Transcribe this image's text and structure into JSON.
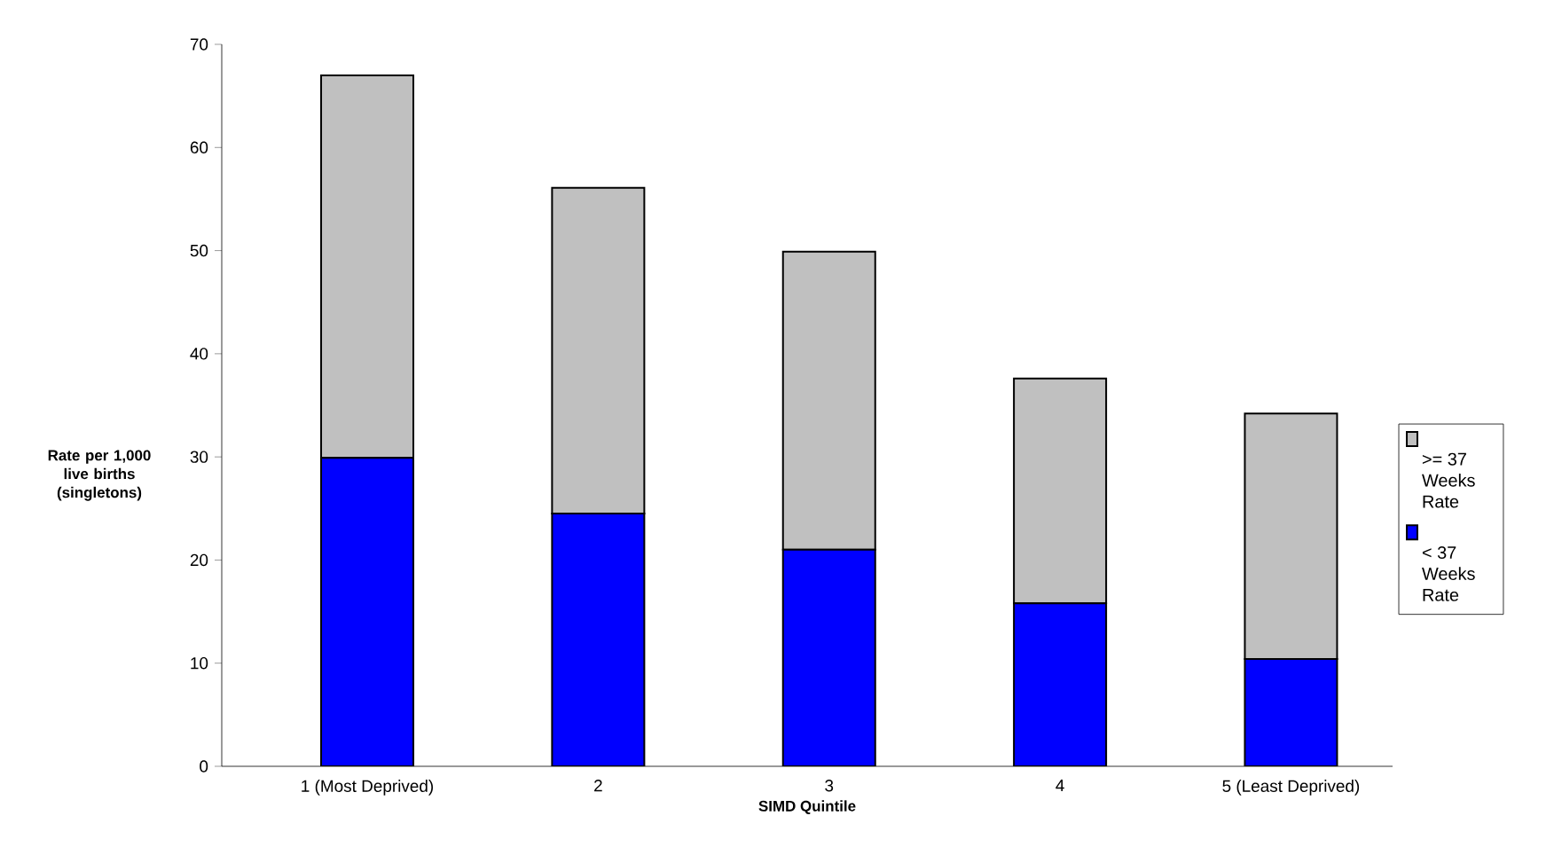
{
  "chart_data": {
    "type": "bar",
    "stacked": true,
    "xlabel": "SIMD Quintile",
    "ylabel": "Rate per 1,000 live births (singletons)",
    "categories": [
      "1 (Most Deprived)",
      "2",
      "3",
      "4",
      "5 (Least Deprived)"
    ],
    "series": [
      {
        "name": "< 37 Weeks Rate",
        "color": "#0000ff",
        "values": [
          29.9,
          24.5,
          21.0,
          15.8,
          10.4
        ]
      },
      {
        "name": ">= 37 Weeks Rate",
        "color": "#c0c0c0",
        "values": [
          37.1,
          31.6,
          28.9,
          21.8,
          23.8
        ]
      }
    ],
    "ylim": [
      0,
      70
    ],
    "yticks": [
      0,
      10,
      20,
      30,
      40,
      50,
      60,
      70
    ],
    "legend": "right",
    "grid": false
  }
}
